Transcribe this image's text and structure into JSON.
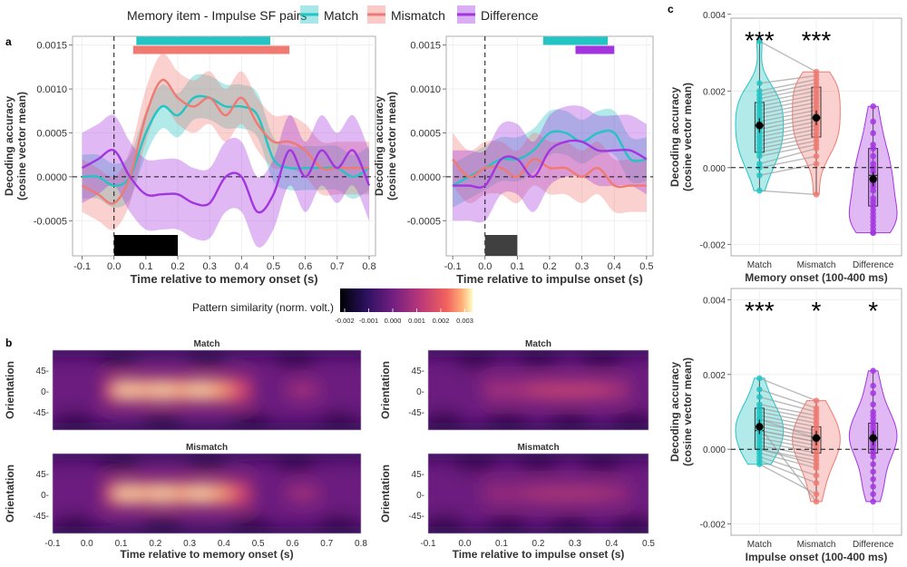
{
  "legend": {
    "title": "Memory item - Impulse SF pairs",
    "items": [
      {
        "label": "Match",
        "color": "#22c4c4"
      },
      {
        "label": "Mismatch",
        "color": "#f07a72"
      },
      {
        "label": "Difference",
        "color": "#a335e0"
      }
    ]
  },
  "panel_labels": {
    "a": "a",
    "b": "b",
    "c": "c"
  },
  "colors": {
    "match": "#22c4c4",
    "mismatch": "#f07a72",
    "difference": "#a335e0",
    "grid": "#ececec"
  },
  "chart_data": [
    {
      "id": "a-memory",
      "type": "line",
      "title": "",
      "xlabel": "Time relative to memory onset (s)",
      "ylabel": "Decoding accuracy\n(cosine vector mean)",
      "xlim": [
        -0.13,
        0.82
      ],
      "ylim": [
        -0.0009,
        0.0016
      ],
      "xticks": [
        -0.1,
        0.0,
        0.1,
        0.2,
        0.3,
        0.4,
        0.5,
        0.6,
        0.7,
        0.8
      ],
      "xtick_labels": [
        "-0.1",
        "0.0",
        "0.1",
        "0.2",
        "0.3",
        "0.4",
        "0.5",
        "0.6",
        "0.7",
        "0.8"
      ],
      "yticks": [
        -0.0005,
        0.0,
        0.0005,
        0.001,
        0.0015
      ],
      "ytick_labels": [
        "-0.0005",
        "0.0000",
        "0.0005",
        "0.0010",
        "0.0015"
      ],
      "x": [
        -0.1,
        -0.05,
        0.0,
        0.05,
        0.1,
        0.15,
        0.2,
        0.25,
        0.3,
        0.35,
        0.4,
        0.45,
        0.5,
        0.55,
        0.6,
        0.65,
        0.7,
        0.75,
        0.8
      ],
      "series": [
        {
          "name": "Match",
          "values": [
            0.0,
            0.0,
            -0.0001,
            0.0,
            0.0005,
            0.0008,
            0.0007,
            0.0009,
            0.0009,
            0.0008,
            0.0008,
            0.0007,
            0.0002,
            0.0001,
            0.0001,
            0.0001,
            0.0001,
            0.0,
            0.0001
          ],
          "ci": 0.00025
        },
        {
          "name": "Mismatch",
          "values": [
            -0.0001,
            -0.0002,
            -0.0003,
            0.0,
            0.0007,
            0.0011,
            0.0009,
            0.0008,
            0.0009,
            0.0007,
            0.0009,
            0.0006,
            0.0004,
            0.0004,
            0.0003,
            0.0001,
            0.0001,
            0.0001,
            0.0001
          ],
          "ci": 0.0003
        },
        {
          "name": "Difference",
          "values": [
            0.0001,
            0.0002,
            0.0003,
            0.0,
            -0.0002,
            -0.0002,
            -0.0002,
            -0.0003,
            -0.0003,
            0.0,
            0.0,
            -0.0004,
            -0.0002,
            0.0003,
            0.0,
            0.0003,
            0.0001,
            0.0003,
            -0.0001
          ],
          "ci": 0.0004
        }
      ],
      "sig_bars": [
        {
          "series": "Match",
          "start": 0.07,
          "end": 0.49
        },
        {
          "series": "Mismatch",
          "start": 0.06,
          "end": 0.55
        }
      ],
      "stimulus_bar": {
        "start": 0.0,
        "end": 0.2,
        "color": "#000000"
      }
    },
    {
      "id": "a-impulse",
      "type": "line",
      "title": "",
      "xlabel": "Time relative to impulse onset (s)",
      "ylabel": "",
      "xlim": [
        -0.12,
        0.52
      ],
      "ylim": [
        -0.0009,
        0.0016
      ],
      "xticks": [
        -0.1,
        0.0,
        0.1,
        0.2,
        0.3,
        0.4,
        0.5
      ],
      "xtick_labels": [
        "-0.1",
        "0.0",
        "0.1",
        "0.2",
        "0.3",
        "0.4",
        "0.5"
      ],
      "yticks": [
        -0.0005,
        0.0,
        0.0005,
        0.001,
        0.0015
      ],
      "ytick_labels": [
        "-0.0005",
        "0.0000",
        "0.0005",
        "0.0010",
        "0.0015"
      ],
      "x": [
        -0.1,
        -0.05,
        0.0,
        0.05,
        0.1,
        0.15,
        0.2,
        0.25,
        0.3,
        0.35,
        0.4,
        0.45,
        0.5
      ],
      "series": [
        {
          "name": "Match",
          "values": [
            -0.0001,
            0.0,
            0.0001,
            0.0002,
            0.0002,
            0.0003,
            0.0005,
            0.0005,
            0.0004,
            0.0005,
            0.0005,
            0.0002,
            0.0002
          ],
          "ci": 0.00025
        },
        {
          "name": "Mismatch",
          "values": [
            0.0002,
            0.0,
            0.0001,
            0.0001,
            0.0,
            0.0002,
            0.0001,
            0.0001,
            0.0,
            0.0001,
            -0.0001,
            -0.0001,
            -0.0001
          ],
          "ci": 0.0003
        },
        {
          "name": "Difference",
          "values": [
            -0.0001,
            -0.0001,
            -0.0001,
            0.0002,
            0.0002,
            0.0,
            0.0003,
            0.0004,
            0.0004,
            0.0003,
            0.0003,
            0.0003,
            0.0002
          ],
          "ci": 0.0004
        }
      ],
      "sig_bars": [
        {
          "series": "Match",
          "start": 0.18,
          "end": 0.38
        },
        {
          "series": "Difference",
          "start": 0.28,
          "end": 0.4
        }
      ],
      "stimulus_bar": {
        "start": 0.0,
        "end": 0.1,
        "color": "#404040"
      }
    },
    {
      "id": "b-colorbar",
      "type": "heatmap",
      "title": "Pattern similarity (norm. volt.)",
      "range": [
        -0.002,
        0.003
      ],
      "tick_labels": [
        "-0.002",
        "-0.001",
        "0.000",
        "0.001",
        "0.002",
        "0.003"
      ]
    },
    {
      "id": "b-memory",
      "type": "heatmap",
      "title": "Match / Mismatch",
      "panels": [
        "Match",
        "Mismatch"
      ],
      "xlabel": "Time relative to memory onset (s)",
      "ylabel": "Orientation",
      "xlim": [
        -0.1,
        0.8
      ],
      "xtick_labels": [
        "-0.1",
        "0.0",
        "0.1",
        "0.2",
        "0.3",
        "0.4",
        "0.5",
        "0.6",
        "0.7",
        "0.8"
      ],
      "ytick_labels": [
        "45-",
        "0-",
        "-45-"
      ],
      "intensity": {
        "Match": 1.0,
        "Mismatch": 1.0
      }
    },
    {
      "id": "b-impulse",
      "type": "heatmap",
      "title": "Match / Mismatch",
      "panels": [
        "Match",
        "Mismatch"
      ],
      "xlabel": "Time relative to impulse onset (s)",
      "ylabel": "Orientation",
      "xlim": [
        -0.1,
        0.5
      ],
      "xtick_labels": [
        "-0.1",
        "0.0",
        "0.1",
        "0.2",
        "0.3",
        "0.4",
        "0.5"
      ],
      "ytick_labels": [
        "45-",
        "0-",
        "-45-"
      ],
      "intensity": {
        "Match": 0.55,
        "Mismatch": 0.35
      }
    },
    {
      "id": "c-memory",
      "type": "scatter",
      "title": "",
      "xlabel": "Memory onset (100-400 ms)",
      "ylabel": "Decoding accuracy\n(cosine vector mean)",
      "categories": [
        "Match",
        "Mismatch",
        "Difference"
      ],
      "ylim": [
        -0.0023,
        0.0039
      ],
      "yticks": [
        -0.002,
        0.0,
        0.002,
        0.004
      ],
      "ytick_labels": [
        "-0.002",
        "0.000",
        "0.002",
        "0.004"
      ],
      "means": [
        0.0011,
        0.0013,
        -0.0003
      ],
      "medians": [
        0.0011,
        0.0013,
        -0.0002
      ],
      "q1": [
        0.0004,
        0.0008,
        -0.001
      ],
      "q3": [
        0.0017,
        0.0021,
        0.0005
      ],
      "significance": [
        "***",
        "***",
        ""
      ],
      "points": {
        "Match": [
          0.0033,
          0.0022,
          0.002,
          0.0019,
          0.0018,
          0.0017,
          0.0016,
          0.0015,
          0.0014,
          0.0013,
          0.0012,
          0.0011,
          0.001,
          0.0009,
          0.0008,
          0.0007,
          0.0006,
          0.0005,
          0.0004,
          0.0003,
          0.0001,
          0.0,
          -0.0002,
          -0.0006
        ],
        "Mismatch": [
          0.0025,
          0.0024,
          0.0023,
          0.0022,
          0.0021,
          0.002,
          0.0019,
          0.0018,
          0.0017,
          0.0016,
          0.0015,
          0.0014,
          0.0013,
          0.0012,
          0.0011,
          0.001,
          0.0009,
          0.0008,
          0.0007,
          0.0006,
          0.0005,
          0.0003,
          0.0001,
          -0.0007
        ],
        "Difference": [
          0.0016,
          0.0012,
          0.0009,
          0.0006,
          0.0005,
          0.0003,
          0.0001,
          0.0,
          -0.0001,
          -0.0003,
          -0.0004,
          -0.0005,
          -0.0006,
          -0.0008,
          -0.0009,
          -0.001,
          -0.0011,
          -0.0012,
          -0.0013,
          -0.0014,
          -0.0015,
          -0.0016,
          -0.0017,
          -0.0017
        ]
      }
    },
    {
      "id": "c-impulse",
      "type": "scatter",
      "title": "",
      "xlabel": "Impulse onset (100-400 ms)",
      "ylabel": "Decoding accuracy\n(cosine vector mean)",
      "categories": [
        "Match",
        "Mismatch",
        "Difference"
      ],
      "ylim": [
        -0.0023,
        0.0043
      ],
      "yticks": [
        -0.002,
        0.0,
        0.002,
        0.004
      ],
      "ytick_labels": [
        "-0.002",
        "0.000",
        "0.002",
        "0.004"
      ],
      "means": [
        0.0006,
        0.0003,
        0.0003
      ],
      "medians": [
        0.0005,
        0.0003,
        0.0003
      ],
      "q1": [
        0.0,
        -0.0001,
        -0.0001
      ],
      "q3": [
        0.0011,
        0.0006,
        0.0007
      ],
      "significance": [
        "***",
        "*",
        "*"
      ],
      "points": {
        "Match": [
          0.0019,
          0.0016,
          0.0014,
          0.0012,
          0.0011,
          0.001,
          0.0009,
          0.0008,
          0.0007,
          0.0006,
          0.0005,
          0.0005,
          0.0004,
          0.0003,
          0.0002,
          0.0001,
          0.0,
          0.0,
          -0.0001,
          -0.0002,
          -0.0003,
          -0.0004,
          0.0006,
          0.0008
        ],
        "Mismatch": [
          0.0013,
          0.0011,
          0.001,
          0.0009,
          0.0008,
          0.0007,
          0.0006,
          0.0005,
          0.0004,
          0.0003,
          0.0002,
          0.0002,
          0.0001,
          0.0,
          -0.0001,
          -0.0002,
          -0.0003,
          -0.0004,
          -0.0005,
          -0.0007,
          -0.0009,
          -0.0012,
          -0.0014,
          0.0003
        ],
        "Difference": [
          0.0021,
          0.0017,
          0.0015,
          0.0012,
          0.001,
          0.0009,
          0.0008,
          0.0007,
          0.0006,
          0.0005,
          0.0004,
          0.0003,
          0.0002,
          0.0001,
          0.0,
          -0.0001,
          -0.0002,
          -0.0004,
          -0.0006,
          -0.0008,
          -0.001,
          -0.0012,
          -0.0014,
          0.0003
        ]
      }
    }
  ]
}
